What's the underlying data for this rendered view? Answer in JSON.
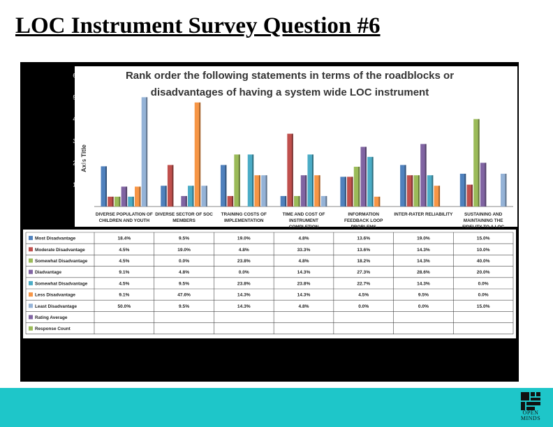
{
  "slide": {
    "title": "LOC Instrument Survey Question #6",
    "logo_text": [
      "OPEN",
      "MINDS"
    ],
    "footer_color": "#1ec6c9"
  },
  "chart_data": {
    "type": "bar",
    "title_line1": "Rank order the following statements in terms of the roadblocks or",
    "title_line2": "disadvantages of having a system wide LOC instrument",
    "ylabel": "Axis Title",
    "ylim": [
      0,
      60
    ],
    "yticks": [
      "0.0%",
      "10.0%",
      "20.0%",
      "30.0%",
      "40.0%",
      "50.0%",
      "60.0%"
    ],
    "grid": false,
    "categories": [
      [
        "DIVERSE POPULATION OF",
        "CHILDREN AND YOUTH"
      ],
      [
        "DIVERSE SECTOR OF SOC",
        "MEMBERS"
      ],
      [
        "TRAINING COSTS OF",
        "IMPLEMENTATION"
      ],
      [
        "TIME AND COST OF",
        "INSTRUMENT",
        "COMPLETION"
      ],
      [
        "INFORMATION",
        "FEEDBACK LOOP",
        "PROBLEMS"
      ],
      [
        "INTER-RATER RELIABILITY"
      ],
      [
        "SUSTAINING AND",
        "MAINTAINING THE",
        "FIDELITY TO A LOC"
      ]
    ],
    "series": [
      {
        "name": "Most Disadvantage",
        "color": "#4f81bd",
        "values": [
          18.4,
          9.5,
          19.0,
          4.8,
          13.6,
          19.0,
          15.0
        ],
        "labels": [
          "18.4%",
          "9.5%",
          "19.0%",
          "4.8%",
          "13.6%",
          "19.0%",
          "15.0%"
        ]
      },
      {
        "name": "Moderate Disadvantage",
        "color": "#c0504d",
        "values": [
          4.5,
          19.0,
          4.8,
          33.3,
          13.6,
          14.3,
          10.0
        ],
        "labels": [
          "4.5%",
          "19.0%",
          "4.8%",
          "33.3%",
          "13.6%",
          "14.3%",
          "10.0%"
        ]
      },
      {
        "name": "Somewhat Disadvantage",
        "color": "#9bbb59",
        "values": [
          4.5,
          0.0,
          23.8,
          4.8,
          18.2,
          14.3,
          40.0
        ],
        "labels": [
          "4.5%",
          "0.0%",
          "23.8%",
          "4.8%",
          "18.2%",
          "14.3%",
          "40.0%"
        ]
      },
      {
        "name": "Diadvantage",
        "color": "#8064a2",
        "values": [
          9.1,
          4.8,
          0.0,
          14.3,
          27.3,
          28.6,
          20.0
        ],
        "labels": [
          "9.1%",
          "4.8%",
          "0.0%",
          "14.3%",
          "27.3%",
          "28.6%",
          "20.0%"
        ]
      },
      {
        "name": "Somewhat Disadvantage",
        "color": "#4bacc6",
        "values": [
          4.5,
          9.5,
          23.8,
          23.8,
          22.7,
          14.3,
          0.0
        ],
        "labels": [
          "4.5%",
          "9.5%",
          "23.8%",
          "23.8%",
          "22.7%",
          "14.3%",
          "0.0%"
        ]
      },
      {
        "name": "Less Disadvantage",
        "color": "#f79646",
        "values": [
          9.1,
          47.6,
          14.3,
          14.3,
          4.5,
          9.5,
          0.0
        ],
        "labels": [
          "9.1%",
          "47.6%",
          "14.3%",
          "14.3%",
          "4.5%",
          "9.5%",
          "0.0%"
        ]
      },
      {
        "name": "Least Disadvantage",
        "color": "#95b3d7",
        "values": [
          50.0,
          9.5,
          14.3,
          4.8,
          0.0,
          0.0,
          15.0
        ],
        "labels": [
          "50.0%",
          "9.5%",
          "14.3%",
          "4.8%",
          "0.0%",
          "0.0%",
          "15.0%"
        ]
      }
    ],
    "extra_rows": [
      {
        "name": "Rating Average",
        "color": "#8064a2"
      },
      {
        "name": "Response Count",
        "color": "#9bbb59"
      }
    ],
    "table_headers": [
      "DIVERSE POPULATION OF CHILDREN AND YOUTH",
      "DIVERSE SECTOR OF SOC MEMBERS",
      "TRAINING COSTS OF IMPLEMENTATION",
      "TIME AND COST OF INSTRUMENT COMPLETION",
      "INFORMATION FEEDBACK LOOP PROBLEMS",
      "INTER-RATER RELIABILITY",
      "SUSTAINING AND MAINTAINING THE FIDELITY TO A LOC"
    ]
  }
}
